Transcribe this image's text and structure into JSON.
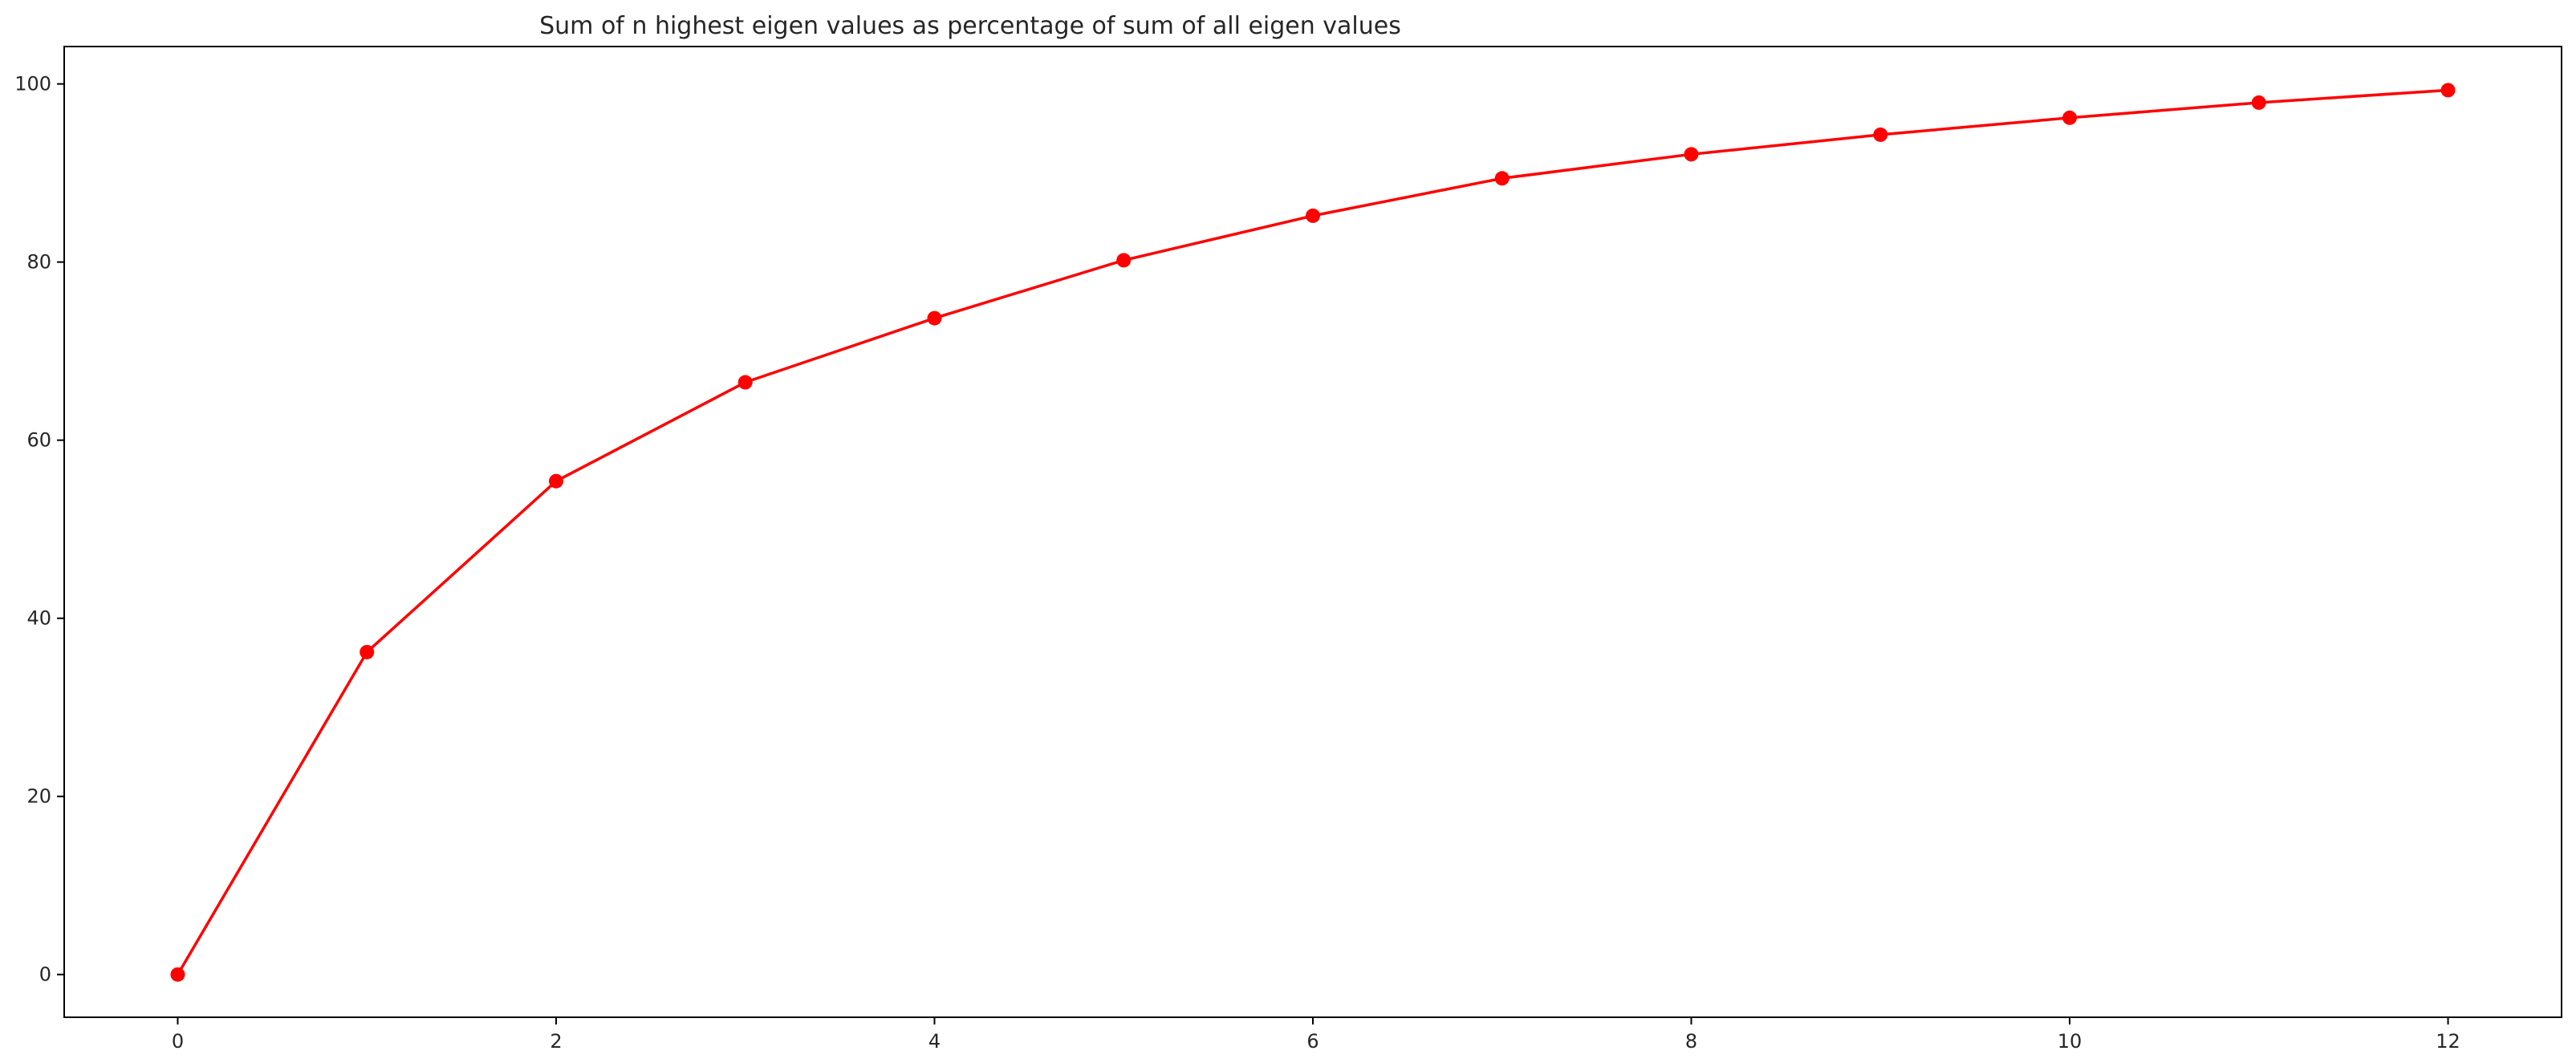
{
  "chart_data": {
    "type": "line",
    "title": "Sum of n highest eigen values as percentage of sum of all eigen values",
    "xlabel": "",
    "ylabel": "",
    "x": [
      0,
      1,
      2,
      3,
      4,
      5,
      6,
      7,
      8,
      9,
      10,
      11,
      12
    ],
    "series": [
      {
        "values": [
          0,
          36.2,
          55.4,
          66.5,
          73.7,
          80.2,
          85.2,
          89.4,
          92.1,
          94.3,
          96.2,
          97.9,
          99.3
        ],
        "color": "#ff0000",
        "marker": "circle"
      }
    ],
    "xlim": [
      -0.6,
      12.6
    ],
    "ylim": [
      -4.8,
      104.2
    ],
    "xticks": [
      0,
      2,
      4,
      6,
      8,
      10,
      12
    ],
    "yticks": [
      0,
      20,
      40,
      60,
      80,
      100
    ],
    "grid": false,
    "legend": "none"
  }
}
